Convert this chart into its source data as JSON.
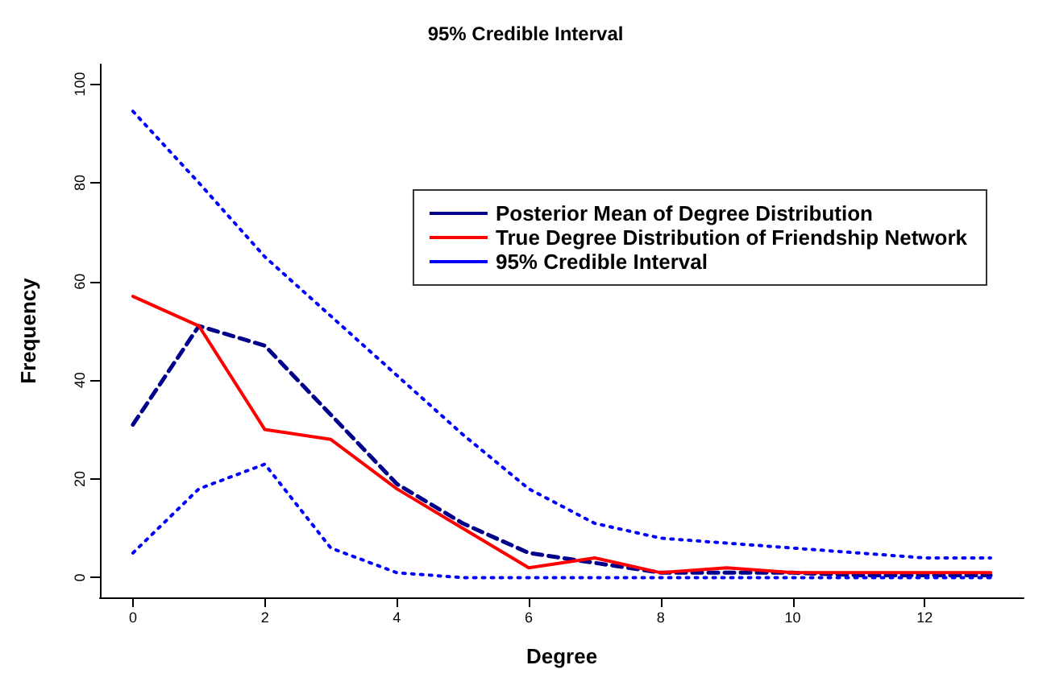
{
  "chart_data": {
    "type": "line",
    "title": "95% Credible Interval",
    "xlabel": "Degree",
    "ylabel": "Frequency",
    "x": [
      0,
      1,
      2,
      3,
      4,
      5,
      6,
      7,
      8,
      9,
      10,
      11,
      12,
      13
    ],
    "series": [
      {
        "name": "Posterior Mean of Degree Distribution",
        "color": "#00008b",
        "line_style": "dashed",
        "values": [
          31,
          51,
          47,
          33,
          19,
          11,
          5,
          3,
          1,
          1,
          1,
          0.5,
          0.5,
          0.5
        ]
      },
      {
        "name": "True Degree Distribution of Friendship Network",
        "color": "#ff0000",
        "line_style": "solid",
        "values": [
          57,
          51,
          30,
          28,
          18,
          10,
          2,
          4,
          1,
          2,
          1,
          1,
          1,
          1
        ]
      },
      {
        "name": "95% Credible Interval",
        "color": "#0000ff",
        "line_style": "dotted",
        "values": [
          94.5,
          80,
          65,
          53,
          41,
          29,
          18,
          11,
          8,
          7,
          6,
          5,
          4,
          4
        ]
      },
      {
        "color": "#0000ff",
        "line_style": "dotted",
        "values": [
          5,
          18,
          23,
          6,
          1,
          0,
          0,
          0,
          0,
          0,
          0,
          0,
          0,
          0
        ]
      }
    ],
    "xlim": [
      -0.5,
      13.5
    ],
    "xticks": [
      0,
      2,
      4,
      6,
      8,
      10,
      12
    ],
    "ylim": [
      -4,
      104
    ],
    "yticks": [
      0,
      20,
      40,
      60,
      80,
      100
    ],
    "grid": false,
    "legend": "top right",
    "marker": "none"
  }
}
